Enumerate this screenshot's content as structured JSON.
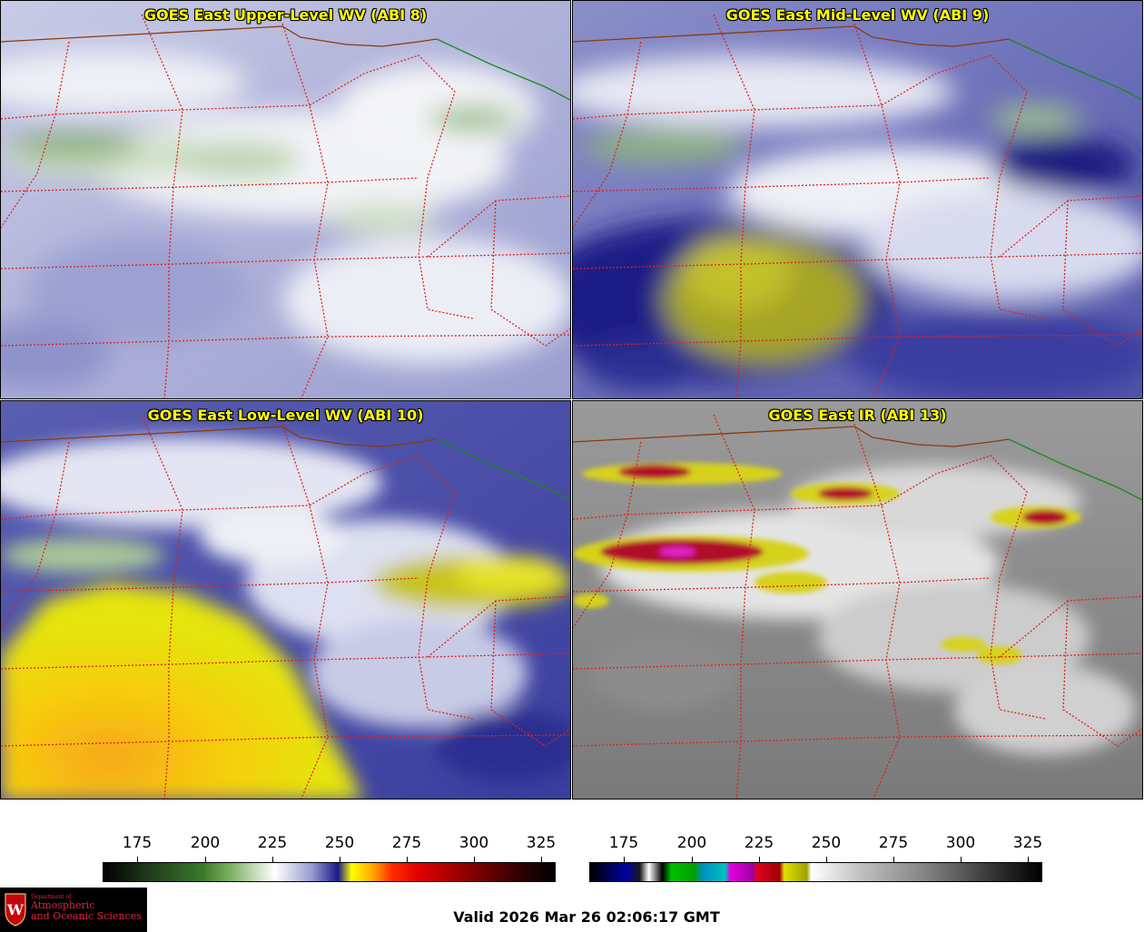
{
  "panels": [
    {
      "id": "abi8",
      "title": "GOES East Upper-Level WV (ABI 8)"
    },
    {
      "id": "abi9",
      "title": "GOES East Mid-Level WV (ABI 9)"
    },
    {
      "id": "abi10",
      "title": "GOES East Low-Level WV (ABI 10)"
    },
    {
      "id": "abi13",
      "title": "GOES East IR (ABI 13)"
    }
  ],
  "colorbars": {
    "wv": {
      "ticks": [
        "175",
        "200",
        "225",
        "250",
        "275",
        "300",
        "325"
      ]
    },
    "ir": {
      "ticks": [
        "175",
        "200",
        "225",
        "250",
        "275",
        "300",
        "325"
      ]
    }
  },
  "logo": {
    "line1": "Department of",
    "line2": "Atmospheric",
    "line3": "and Oceanic Sciences",
    "crest_letter": "W"
  },
  "footer": {
    "valid_time": "Valid 2026 Mar 26 02:06:17 GMT"
  },
  "colors": {
    "state_borders": "#e0201c",
    "country_border": "#8b3a10",
    "coast_line": "#1a8a1a",
    "title_text": "#ffff00"
  }
}
